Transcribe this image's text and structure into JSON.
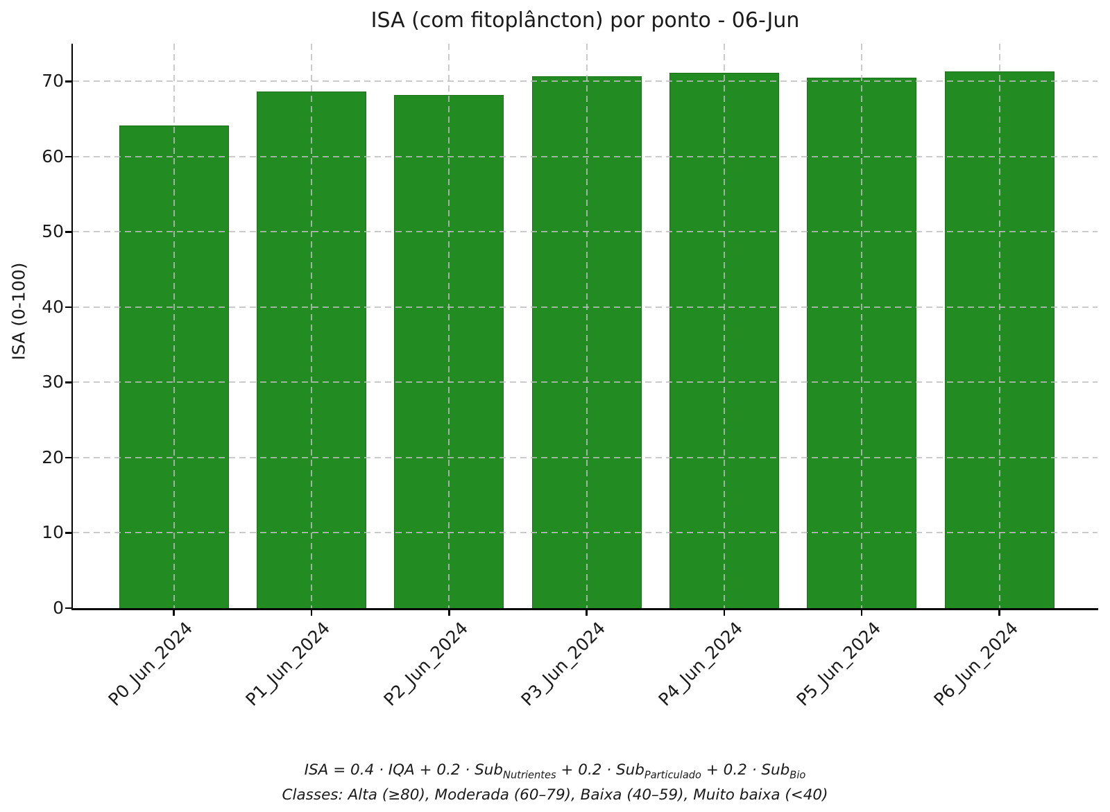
{
  "chart_data": {
    "type": "bar",
    "title": "ISA (com fitoplâncton) por ponto - 06-Jun",
    "categories": [
      "P0_Jun_2024",
      "P1_Jun_2024",
      "P2_Jun_2024",
      "P3_Jun_2024",
      "P4_Jun_2024",
      "P5_Jun_2024",
      "P6_Jun_2024"
    ],
    "values": [
      64.1,
      68.6,
      68.2,
      70.7,
      71.1,
      70.5,
      71.3
    ],
    "xlabel": "",
    "ylabel": "ISA (0-100)",
    "ylim": [
      0,
      75
    ],
    "yticks": [
      0,
      10,
      20,
      30,
      40,
      50,
      60,
      70
    ],
    "grid": true,
    "legend": "none",
    "bar_color": "#228B22",
    "bar_edge_color": "#1b6f1b",
    "grid_color": "#bebebe",
    "axis_color": "#000000",
    "text_color": "#1a1a1a"
  },
  "footnote": {
    "formula_parts": [
      {
        "text": "ISA = 0.4 · IQA + 0.2 · Sub"
      },
      {
        "sub": "Nutrientes"
      },
      {
        "text": " + 0.2 · Sub"
      },
      {
        "sub": "Particulado"
      },
      {
        "text": " + 0.2 · Sub"
      },
      {
        "sub": "Bio"
      }
    ],
    "classes_line": "Classes: Alta (≥80), Moderada (60–79), Baixa (40–59), Muito baixa (<40)"
  }
}
